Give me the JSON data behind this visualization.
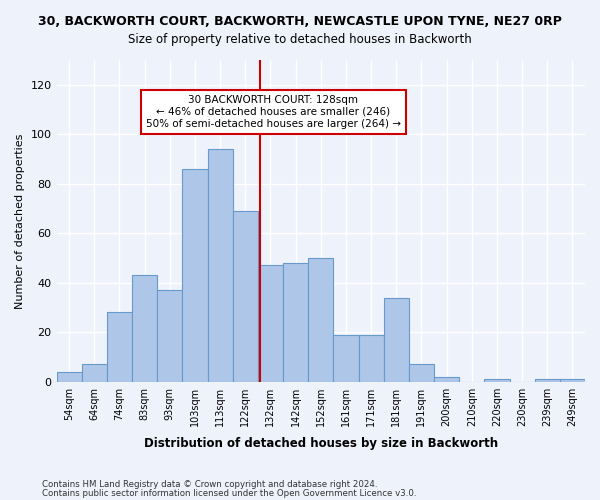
{
  "title": "30, BACKWORTH COURT, BACKWORTH, NEWCASTLE UPON TYNE, NE27 0RP",
  "subtitle": "Size of property relative to detached houses in Backworth",
  "xlabel": "Distribution of detached houses by size in Backworth",
  "ylabel": "Number of detached properties",
  "bar_labels": [
    "54sqm",
    "64sqm",
    "74sqm",
    "83sqm",
    "93sqm",
    "103sqm",
    "113sqm",
    "122sqm",
    "132sqm",
    "142sqm",
    "152sqm",
    "161sqm",
    "171sqm",
    "181sqm",
    "191sqm",
    "200sqm",
    "210sqm",
    "220sqm",
    "230sqm",
    "239sqm",
    "249sqm"
  ],
  "bar_values": [
    4,
    7,
    28,
    43,
    37,
    86,
    94,
    69,
    47,
    48,
    50,
    19,
    19,
    34,
    7,
    2,
    0,
    1,
    0,
    1,
    1
  ],
  "bar_color": "#aec6e8",
  "bar_edge_color": "#6699cc",
  "background_color": "#eef2fb",
  "grid_color": "#ffffff",
  "marker_label": "30 BACKWORTH COURT: 128sqm",
  "annotation_line1": "← 46% of detached houses are smaller (246)",
  "annotation_line2": "50% of semi-detached houses are larger (264) →",
  "annotation_box_color": "#ffffff",
  "annotation_border_color": "#cc0000",
  "vline_color": "#cc0000",
  "ylim": [
    0,
    130
  ],
  "yticks": [
    0,
    20,
    40,
    60,
    80,
    100,
    120
  ],
  "footer1": "Contains HM Land Registry data © Crown copyright and database right 2024.",
  "footer2": "Contains public sector information licensed under the Open Government Licence v3.0."
}
